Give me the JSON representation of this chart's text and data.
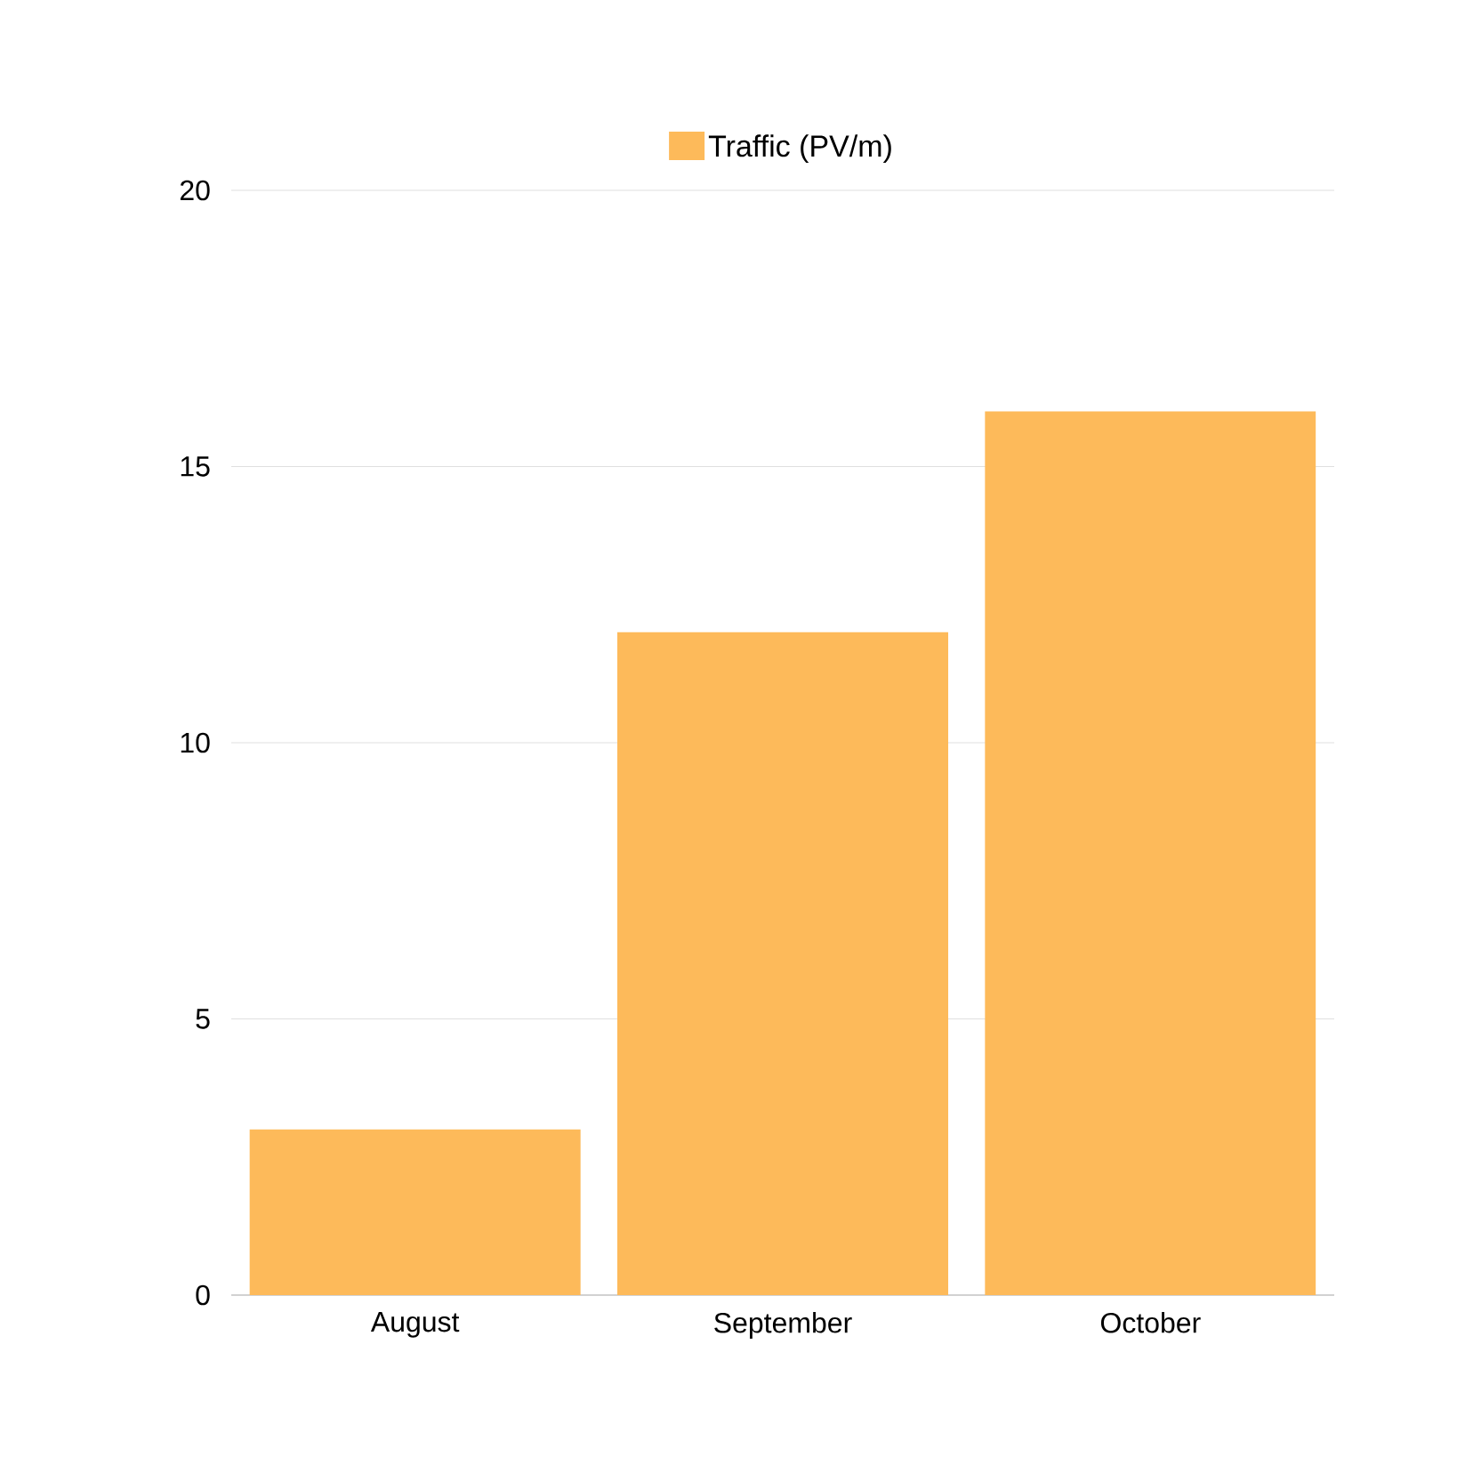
{
  "chart_data": {
    "type": "bar",
    "categories": [
      "August",
      "September",
      "October"
    ],
    "series": [
      {
        "name": "Traffic (PV/m)",
        "color": "#fdba5a",
        "values": [
          3,
          12,
          16
        ]
      }
    ],
    "ylim": [
      0,
      20
    ],
    "yticks": [
      0,
      5,
      10,
      15,
      20
    ],
    "grid": "y",
    "legend": "top"
  }
}
